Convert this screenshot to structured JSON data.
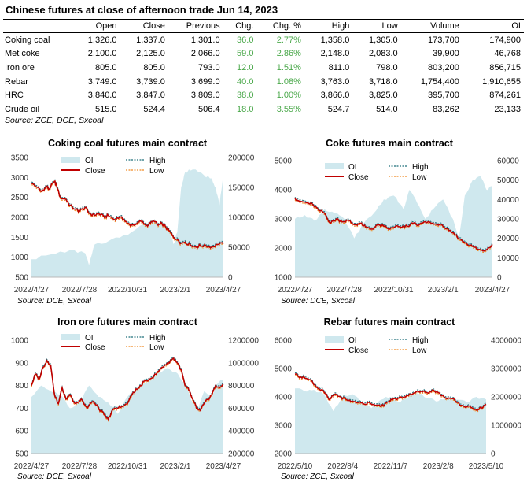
{
  "title": "Chinese futures at close of afternoon trade Jun 14, 2023",
  "table": {
    "headers": [
      "",
      "Open",
      "Close",
      "Previous",
      "Chg.",
      "Chg. %",
      "High",
      "Low",
      "Volume",
      "OI"
    ],
    "rows": [
      [
        "Coking coal",
        "1,326.0",
        "1,337.0",
        "1,301.0",
        "36.0",
        "2.77%",
        "1,358.0",
        "1,305.0",
        "173,700",
        "174,900"
      ],
      [
        "Met coke",
        "2,100.0",
        "2,125.0",
        "2,066.0",
        "59.0",
        "2.86%",
        "2,148.0",
        "2,083.0",
        "39,900",
        "46,768"
      ],
      [
        "Iron ore",
        "805.0",
        "805.0",
        "793.0",
        "12.0",
        "1.51%",
        "811.0",
        "798.0",
        "803,200",
        "856,715"
      ],
      [
        "Rebar",
        "3,749.0",
        "3,739.0",
        "3,699.0",
        "40.0",
        "1.08%",
        "3,763.0",
        "3,718.0",
        "1,754,400",
        "1,910,655"
      ],
      [
        "HRC",
        "3,840.0",
        "3,847.0",
        "3,809.0",
        "38.0",
        "1.00%",
        "3,866.0",
        "3,825.0",
        "395,700",
        "874,261"
      ],
      [
        "Crude oil",
        "515.0",
        "524.4",
        "506.4",
        "18.0",
        "3.55%",
        "524.7",
        "514.0",
        "83,262",
        "23,133"
      ]
    ],
    "source": "Source: ZCE, DCE, Sxcoal"
  },
  "colors": {
    "oi": "#cfe8ee",
    "close": "#c00000",
    "high": "#1f6f7a",
    "low": "#f08a24",
    "positive": "#4aa84a"
  },
  "chart_data": [
    {
      "type": "line",
      "title": "Coking coal futures main contract",
      "source": "Source: DCE, Sxcoal",
      "legend": [
        "OI",
        "High",
        "Close",
        "Low"
      ],
      "x_ticks": [
        "2022/4/27",
        "2022/7/28",
        "2022/10/31",
        "2023/2/1",
        "2023/4/27"
      ],
      "y_left": {
        "min": 500,
        "max": 3500,
        "ticks": [
          500,
          1000,
          1500,
          2000,
          2500,
          3000,
          3500
        ]
      },
      "y_right": {
        "min": 0,
        "max": 200000,
        "ticks": [
          0,
          50000,
          100000,
          150000,
          200000
        ]
      },
      "close": [
        [
          0,
          2850
        ],
        [
          3,
          2750
        ],
        [
          5,
          2650
        ],
        [
          8,
          2780
        ],
        [
          9,
          2700
        ],
        [
          12,
          2900
        ],
        [
          13,
          2820
        ],
        [
          15,
          2500
        ],
        [
          18,
          2450
        ],
        [
          20,
          2300
        ],
        [
          23,
          2200
        ],
        [
          25,
          2150
        ],
        [
          28,
          2250
        ],
        [
          30,
          2100
        ],
        [
          33,
          2050
        ],
        [
          35,
          2100
        ],
        [
          38,
          2000
        ],
        [
          40,
          2050
        ],
        [
          43,
          1950
        ],
        [
          46,
          2000
        ],
        [
          48,
          1950
        ],
        [
          50,
          1850
        ],
        [
          52,
          1800
        ],
        [
          55,
          1850
        ],
        [
          57,
          1900
        ],
        [
          60,
          1800
        ],
        [
          62,
          1850
        ],
        [
          64,
          1900
        ],
        [
          66,
          1800
        ],
        [
          68,
          1850
        ],
        [
          70,
          1750
        ],
        [
          72,
          1650
        ],
        [
          74,
          1500
        ],
        [
          76,
          1450
        ],
        [
          78,
          1350
        ],
        [
          80,
          1380
        ],
        [
          83,
          1300
        ],
        [
          86,
          1250
        ],
        [
          88,
          1300
        ],
        [
          91,
          1280
        ],
        [
          94,
          1260
        ],
        [
          97,
          1320
        ],
        [
          100,
          1337
        ]
      ],
      "oi": [
        [
          0,
          30000
        ],
        [
          10,
          38000
        ],
        [
          20,
          45000
        ],
        [
          28,
          40000
        ],
        [
          30,
          20000
        ],
        [
          33,
          55000
        ],
        [
          40,
          60000
        ],
        [
          48,
          70000
        ],
        [
          52,
          75000
        ],
        [
          58,
          88000
        ],
        [
          63,
          95000
        ],
        [
          68,
          88000
        ],
        [
          72,
          80000
        ],
        [
          74,
          55000
        ],
        [
          76,
          75000
        ],
        [
          78,
          150000
        ],
        [
          80,
          175000
        ],
        [
          84,
          180000
        ],
        [
          90,
          170000
        ],
        [
          94,
          165000
        ],
        [
          96,
          150000
        ],
        [
          98,
          120000
        ],
        [
          100,
          174900
        ]
      ]
    },
    {
      "type": "line",
      "title": "Coke futures main contract",
      "source": "Source: DCE, Sxcoal",
      "legend": [
        "OI",
        "High",
        "Close",
        "Low"
      ],
      "x_ticks": [
        "2022/4/27",
        "2022/7/28",
        "2022/10/31",
        "2023/2/1",
        "2023/4/27"
      ],
      "y_left": {
        "min": 1000,
        "max": 5000,
        "ticks": [
          1000,
          2000,
          3000,
          4000,
          5000
        ]
      },
      "y_right": {
        "min": 0,
        "max": 60000,
        "ticks": [
          0,
          10000,
          20000,
          30000,
          40000,
          50000,
          60000
        ]
      },
      "close": [
        [
          0,
          3700
        ],
        [
          3,
          3600
        ],
        [
          6,
          3550
        ],
        [
          9,
          3500
        ],
        [
          12,
          3300
        ],
        [
          15,
          3200
        ],
        [
          18,
          2850
        ],
        [
          21,
          3000
        ],
        [
          24,
          2900
        ],
        [
          27,
          2950
        ],
        [
          30,
          2800
        ],
        [
          33,
          2850
        ],
        [
          36,
          2700
        ],
        [
          39,
          2650
        ],
        [
          42,
          2800
        ],
        [
          45,
          2750
        ],
        [
          48,
          2650
        ],
        [
          51,
          2750
        ],
        [
          54,
          2700
        ],
        [
          57,
          2750
        ],
        [
          60,
          2850
        ],
        [
          63,
          2800
        ],
        [
          66,
          2900
        ],
        [
          69,
          2850
        ],
        [
          72,
          2800
        ],
        [
          75,
          2750
        ],
        [
          78,
          2600
        ],
        [
          81,
          2450
        ],
        [
          84,
          2300
        ],
        [
          87,
          2150
        ],
        [
          90,
          2050
        ],
        [
          93,
          1950
        ],
        [
          96,
          1900
        ],
        [
          100,
          2125
        ]
      ],
      "oi": [
        [
          0,
          30000
        ],
        [
          5,
          32000
        ],
        [
          10,
          29000
        ],
        [
          15,
          35000
        ],
        [
          20,
          33000
        ],
        [
          25,
          30000
        ],
        [
          30,
          20000
        ],
        [
          35,
          28000
        ],
        [
          40,
          33000
        ],
        [
          45,
          40000
        ],
        [
          50,
          42000
        ],
        [
          55,
          35000
        ],
        [
          58,
          45000
        ],
        [
          62,
          38000
        ],
        [
          66,
          30000
        ],
        [
          70,
          35000
        ],
        [
          75,
          40000
        ],
        [
          80,
          30000
        ],
        [
          83,
          20000
        ],
        [
          86,
          42000
        ],
        [
          90,
          50000
        ],
        [
          94,
          52000
        ],
        [
          97,
          45000
        ],
        [
          100,
          46768
        ]
      ]
    },
    {
      "type": "line",
      "title": "Iron ore futures main contract",
      "source": "Source: DCE, Sxcoal",
      "legend": [
        "OI",
        "High",
        "Close",
        "Low"
      ],
      "x_ticks": [
        "2022/4/27",
        "2022/7/28",
        "2022/10/31",
        "2023/2/1",
        "2023/4/27"
      ],
      "y_left": {
        "min": 500,
        "max": 1000,
        "ticks": [
          500,
          600,
          700,
          800,
          900,
          1000
        ]
      },
      "y_right": {
        "min": 200000,
        "max": 1200000,
        "ticks": [
          200000,
          400000,
          600000,
          800000,
          1000000,
          1200000
        ]
      },
      "close": [
        [
          0,
          800
        ],
        [
          2,
          850
        ],
        [
          4,
          830
        ],
        [
          6,
          880
        ],
        [
          8,
          910
        ],
        [
          10,
          890
        ],
        [
          12,
          760
        ],
        [
          14,
          720
        ],
        [
          16,
          790
        ],
        [
          18,
          740
        ],
        [
          20,
          760
        ],
        [
          23,
          720
        ],
        [
          26,
          740
        ],
        [
          29,
          700
        ],
        [
          32,
          730
        ],
        [
          35,
          700
        ],
        [
          38,
          670
        ],
        [
          40,
          650
        ],
        [
          42,
          690
        ],
        [
          45,
          700
        ],
        [
          48,
          710
        ],
        [
          50,
          720
        ],
        [
          53,
          770
        ],
        [
          56,
          790
        ],
        [
          59,
          820
        ],
        [
          62,
          830
        ],
        [
          65,
          850
        ],
        [
          68,
          880
        ],
        [
          71,
          900
        ],
        [
          74,
          920
        ],
        [
          76,
          900
        ],
        [
          78,
          870
        ],
        [
          80,
          800
        ],
        [
          82,
          780
        ],
        [
          84,
          740
        ],
        [
          86,
          700
        ],
        [
          88,
          690
        ],
        [
          90,
          720
        ],
        [
          92,
          740
        ],
        [
          94,
          760
        ],
        [
          96,
          800
        ],
        [
          98,
          790
        ],
        [
          100,
          805
        ]
      ],
      "oi": [
        [
          0,
          700000
        ],
        [
          5,
          800000
        ],
        [
          10,
          750000
        ],
        [
          15,
          720000
        ],
        [
          20,
          600000
        ],
        [
          25,
          650000
        ],
        [
          30,
          800000
        ],
        [
          35,
          700000
        ],
        [
          40,
          650000
        ],
        [
          45,
          550000
        ],
        [
          50,
          700000
        ],
        [
          55,
          780000
        ],
        [
          60,
          820000
        ],
        [
          65,
          900000
        ],
        [
          70,
          950000
        ],
        [
          75,
          920000
        ],
        [
          80,
          820000
        ],
        [
          84,
          650000
        ],
        [
          87,
          600000
        ],
        [
          90,
          750000
        ],
        [
          94,
          700000
        ],
        [
          97,
          820000
        ],
        [
          100,
          856715
        ]
      ]
    },
    {
      "type": "line",
      "title": "Rebar futures main contract",
      "source": "Source: ZCE, Sxcoal",
      "legend": [
        "OI",
        "High",
        "Close",
        "Low"
      ],
      "x_ticks": [
        "2022/5/10",
        "2022/8/4",
        "2022/11/7",
        "2023/2/8",
        "2023/5/10"
      ],
      "y_left": {
        "min": 2000,
        "max": 6000,
        "ticks": [
          2000,
          3000,
          4000,
          5000,
          6000
        ]
      },
      "y_right": {
        "min": 0,
        "max": 4000000,
        "ticks": [
          0,
          1000000,
          2000000,
          3000000,
          4000000
        ]
      },
      "close": [
        [
          0,
          4800
        ],
        [
          3,
          4700
        ],
        [
          6,
          4650
        ],
        [
          9,
          4550
        ],
        [
          12,
          4300
        ],
        [
          15,
          4200
        ],
        [
          18,
          3900
        ],
        [
          21,
          4100
        ],
        [
          24,
          4000
        ],
        [
          27,
          3900
        ],
        [
          30,
          3850
        ],
        [
          33,
          3800
        ],
        [
          36,
          3750
        ],
        [
          39,
          3800
        ],
        [
          42,
          3700
        ],
        [
          45,
          3650
        ],
        [
          48,
          3800
        ],
        [
          51,
          3900
        ],
        [
          54,
          3950
        ],
        [
          57,
          4000
        ],
        [
          60,
          4100
        ],
        [
          63,
          4150
        ],
        [
          66,
          4200
        ],
        [
          69,
          4150
        ],
        [
          72,
          4250
        ],
        [
          75,
          4150
        ],
        [
          78,
          4000
        ],
        [
          81,
          3950
        ],
        [
          84,
          3850
        ],
        [
          87,
          3700
        ],
        [
          90,
          3650
        ],
        [
          93,
          3600
        ],
        [
          96,
          3550
        ],
        [
          100,
          3739
        ]
      ],
      "oi": [
        [
          0,
          2300000
        ],
        [
          5,
          2200000
        ],
        [
          10,
          2250000
        ],
        [
          15,
          2100000
        ],
        [
          20,
          1500000
        ],
        [
          25,
          2000000
        ],
        [
          30,
          2100000
        ],
        [
          35,
          1800000
        ],
        [
          40,
          1600000
        ],
        [
          45,
          1900000
        ],
        [
          50,
          2000000
        ],
        [
          55,
          1800000
        ],
        [
          60,
          2050000
        ],
        [
          65,
          2100000
        ],
        [
          70,
          1950000
        ],
        [
          75,
          1850000
        ],
        [
          80,
          2000000
        ],
        [
          85,
          1900000
        ],
        [
          90,
          1800000
        ],
        [
          95,
          2000000
        ],
        [
          100,
          1910655
        ]
      ]
    }
  ]
}
